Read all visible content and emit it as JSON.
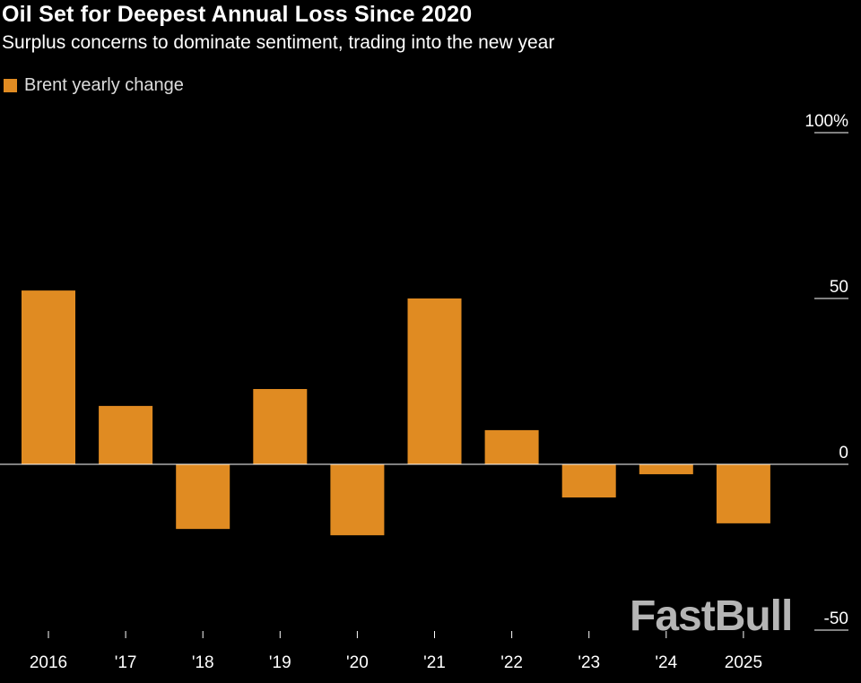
{
  "title": "Oil Set for Deepest Annual Loss Since 2020",
  "subtitle": "Surplus concerns to dominate sentiment, trading into the new year",
  "watermark": "FastBull",
  "chart_data": {
    "type": "bar",
    "categories": [
      "2016",
      "'17",
      "'18",
      "'19",
      "'20",
      "'21",
      "'22",
      "'23",
      "'24",
      "2025"
    ],
    "series": [
      {
        "name": "Brent yearly change",
        "color": "#e08b22",
        "values": [
          52.4,
          17.6,
          -19.5,
          22.7,
          -21.4,
          50.0,
          10.3,
          -10.0,
          -3.0,
          -17.8
        ]
      }
    ],
    "ylim": [
      -50,
      100
    ],
    "yticks": [
      100,
      50,
      0,
      -50
    ],
    "ytick_labels": [
      "100%",
      "50",
      "0",
      "-50"
    ],
    "y_axis_position": "right",
    "grid": false,
    "legend": "top-left",
    "xlabel": "",
    "ylabel": ""
  }
}
